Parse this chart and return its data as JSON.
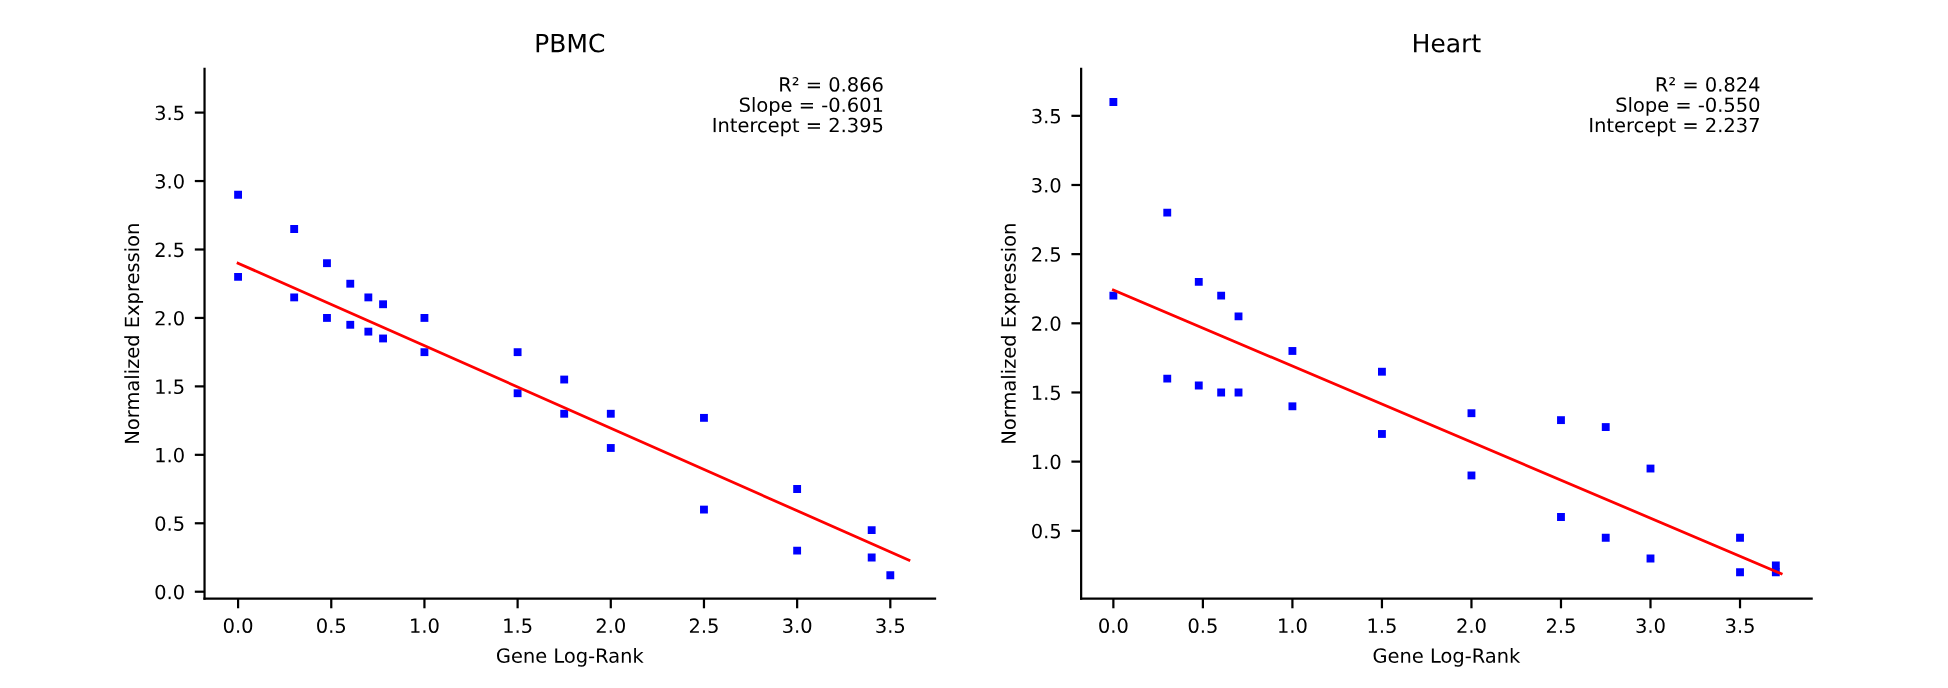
{
  "chart_data": [
    {
      "type": "scatter",
      "title": "PBMC",
      "xlabel": "Gene Log-Rank",
      "ylabel": "Normalized Expression",
      "xlim": [
        -0.18,
        3.74
      ],
      "ylim": [
        -0.05,
        3.82
      ],
      "xticks": [
        {
          "value": 0,
          "label": "0.0"
        },
        0.5,
        {
          "value": 1,
          "label": "1.0"
        },
        1.5,
        {
          "value": 2,
          "label": "2.0"
        },
        2.5,
        {
          "value": 3,
          "label": "3.0"
        },
        3.5
      ],
      "yticks": [
        {
          "value": 0,
          "label": "0.0"
        },
        0.5,
        {
          "value": 1,
          "label": "1.0"
        },
        1.5,
        {
          "value": 2,
          "label": "2.0"
        },
        2.5,
        {
          "value": 3,
          "label": "3.0"
        },
        3.5
      ],
      "grid": false,
      "legend": false,
      "annotations": [
        "R² = 0.866",
        "Slope = -0.601",
        "Intercept = 2.395"
      ],
      "series": [
        {
          "color": "#0000ff",
          "marker": "square",
          "x": [
            0,
            0,
            0.301,
            0.301,
            0.477,
            0.477,
            0.602,
            0.602,
            0.699,
            0.699,
            0.778,
            0.778,
            1.0,
            1.0,
            1.5,
            1.5,
            1.75,
            1.75,
            2.0,
            2.0,
            2.5,
            2.5,
            3.0,
            3.0,
            3.4,
            3.4,
            3.5
          ],
          "values": [
            2.3,
            2.9,
            2.15,
            2.65,
            2.0,
            2.4,
            1.95,
            2.25,
            1.9,
            2.15,
            1.85,
            2.1,
            1.75,
            2.0,
            1.45,
            1.75,
            1.3,
            1.55,
            1.05,
            1.3,
            0.6,
            1.27,
            0.3,
            0.75,
            0.25,
            0.45,
            0.12
          ]
        },
        {
          "type": "line",
          "color": "#ff0000",
          "marker": "none",
          "x": [
            0,
            3.6
          ],
          "values": [
            2.4,
            0.23
          ]
        }
      ]
    },
    {
      "type": "scatter",
      "title": "Heart",
      "xlabel": "Gene Log-Rank",
      "ylabel": "Normalized Expression",
      "xlim": [
        -0.18,
        3.9
      ],
      "ylim": [
        0.01,
        3.84
      ],
      "xticks": [
        {
          "value": 0,
          "label": "0.0"
        },
        0.5,
        {
          "value": 1,
          "label": "1.0"
        },
        1.5,
        {
          "value": 2,
          "label": "2.0"
        },
        2.5,
        {
          "value": 3,
          "label": "3.0"
        },
        3.5
      ],
      "yticks": [
        0.5,
        {
          "value": 1,
          "label": "1.0"
        },
        1.5,
        {
          "value": 2,
          "label": "2.0"
        },
        2.5,
        {
          "value": 3,
          "label": "3.0"
        },
        3.5
      ],
      "grid": false,
      "legend": false,
      "annotations": [
        "R² = 0.824",
        "Slope = -0.550",
        "Intercept = 2.237"
      ],
      "series": [
        {
          "color": "#0000ff",
          "marker": "square",
          "x": [
            0,
            0,
            0.301,
            0.301,
            0.477,
            0.477,
            0.602,
            0.602,
            0.699,
            0.699,
            1.0,
            1.0,
            1.5,
            1.5,
            2.0,
            2.0,
            2.5,
            2.5,
            2.75,
            2.75,
            3.0,
            3.0,
            3.5,
            3.5,
            3.7,
            3.7
          ],
          "values": [
            2.2,
            3.6,
            1.6,
            2.8,
            1.55,
            2.3,
            1.5,
            2.2,
            1.5,
            2.05,
            1.4,
            1.8,
            1.2,
            1.65,
            0.9,
            1.35,
            0.6,
            1.3,
            0.45,
            1.25,
            0.3,
            0.95,
            0.2,
            0.45,
            0.2,
            0.25
          ]
        },
        {
          "type": "line",
          "color": "#ff0000",
          "marker": "none",
          "x": [
            0,
            3.73
          ],
          "values": [
            2.24,
            0.19
          ]
        }
      ]
    }
  ]
}
